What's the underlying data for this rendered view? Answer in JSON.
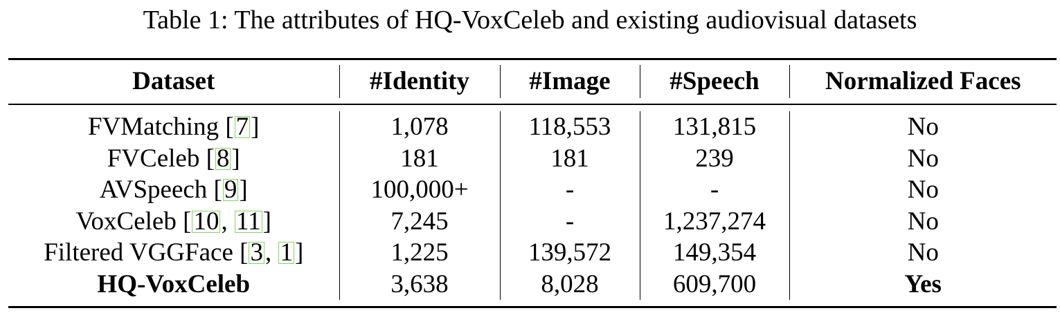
{
  "caption": "Table 1: The attributes of HQ-VoxCeleb and existing audiovisual datasets",
  "columns": [
    "Dataset",
    "#Identity",
    "#Image",
    "#Speech",
    "Normalized Faces"
  ],
  "rows": [
    {
      "name": "FVMatching",
      "cites": [
        "7"
      ],
      "identity": "1,078",
      "image": "118,553",
      "speech": "131,815",
      "normalized": "No",
      "bold": false
    },
    {
      "name": "FVCeleb",
      "cites": [
        "8"
      ],
      "identity": "181",
      "image": "181",
      "speech": "239",
      "normalized": "No",
      "bold": false
    },
    {
      "name": "AVSpeech",
      "cites": [
        "9"
      ],
      "identity": "100,000+",
      "image": "-",
      "speech": "-",
      "normalized": "No",
      "bold": false
    },
    {
      "name": "VoxCeleb",
      "cites": [
        "10",
        "11"
      ],
      "identity": "7,245",
      "image": "-",
      "speech": "1,237,274",
      "normalized": "No",
      "bold": false
    },
    {
      "name": "Filtered VGGFace",
      "cites": [
        "3",
        "1"
      ],
      "identity": "1,225",
      "image": "139,572",
      "speech": "149,354",
      "normalized": "No",
      "bold": false
    },
    {
      "name": "HQ-VoxCeleb",
      "cites": [],
      "identity": "3,638",
      "image": "8,028",
      "speech": "609,700",
      "normalized": "Yes",
      "bold": true
    }
  ],
  "colors": {
    "citation_box": "#7ed957",
    "text": "#000000"
  }
}
